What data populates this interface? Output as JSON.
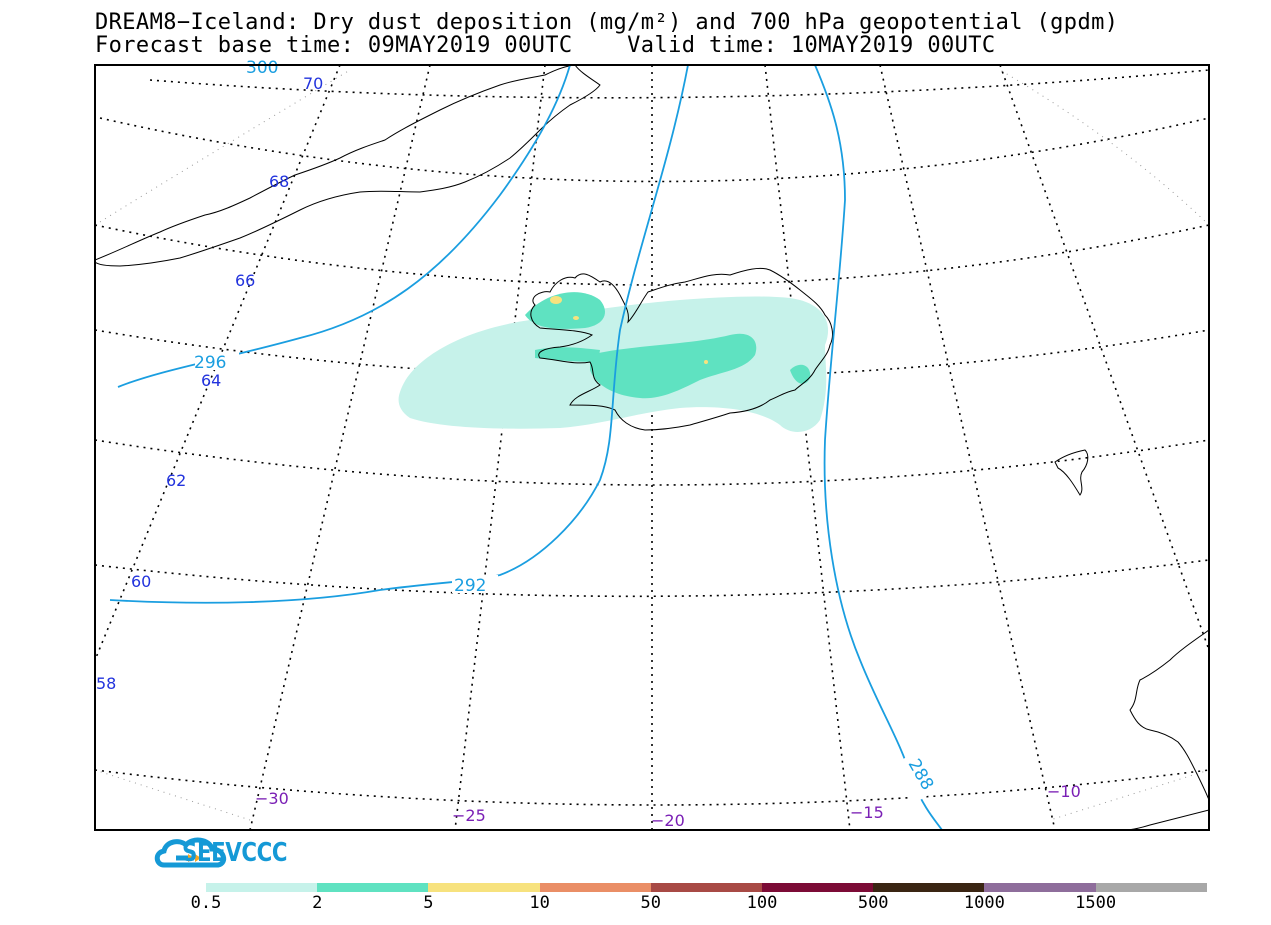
{
  "header": {
    "title_line1": "DREAM8−Iceland: Dry dust deposition (mg/m²) and 700 hPa geopotential (gpdm)",
    "title_line2": "Forecast base time: 09MAY2019 00UTC    Valid time: 10MAY2019 00UTC"
  },
  "map": {
    "contour_labels": [
      "300",
      "296",
      "292",
      "288"
    ],
    "latitude_labels": [
      "70",
      "68",
      "66",
      "64",
      "62",
      "60",
      "58"
    ],
    "longitude_labels": [
      "−30",
      "−25",
      "−20",
      "−15",
      "−10"
    ],
    "colors": {
      "contour": "#1a9ee0",
      "lat_label": "#2233dd",
      "lon_label": "#7a1fb5",
      "coast": "#000000"
    }
  },
  "logo": {
    "text": "SEEVCCC",
    "icon": "cloud-icon"
  },
  "legend": {
    "labels": [
      "0.5",
      "2",
      "5",
      "10",
      "50",
      "100",
      "500",
      "1000",
      "1500"
    ],
    "colors": [
      "#c6f2ea",
      "#5fe2c1",
      "#f7e27e",
      "#ea8e66",
      "#a84a45",
      "#7c0b36",
      "#3a2513",
      "#8e6d9b",
      "#a8a8a8"
    ]
  }
}
